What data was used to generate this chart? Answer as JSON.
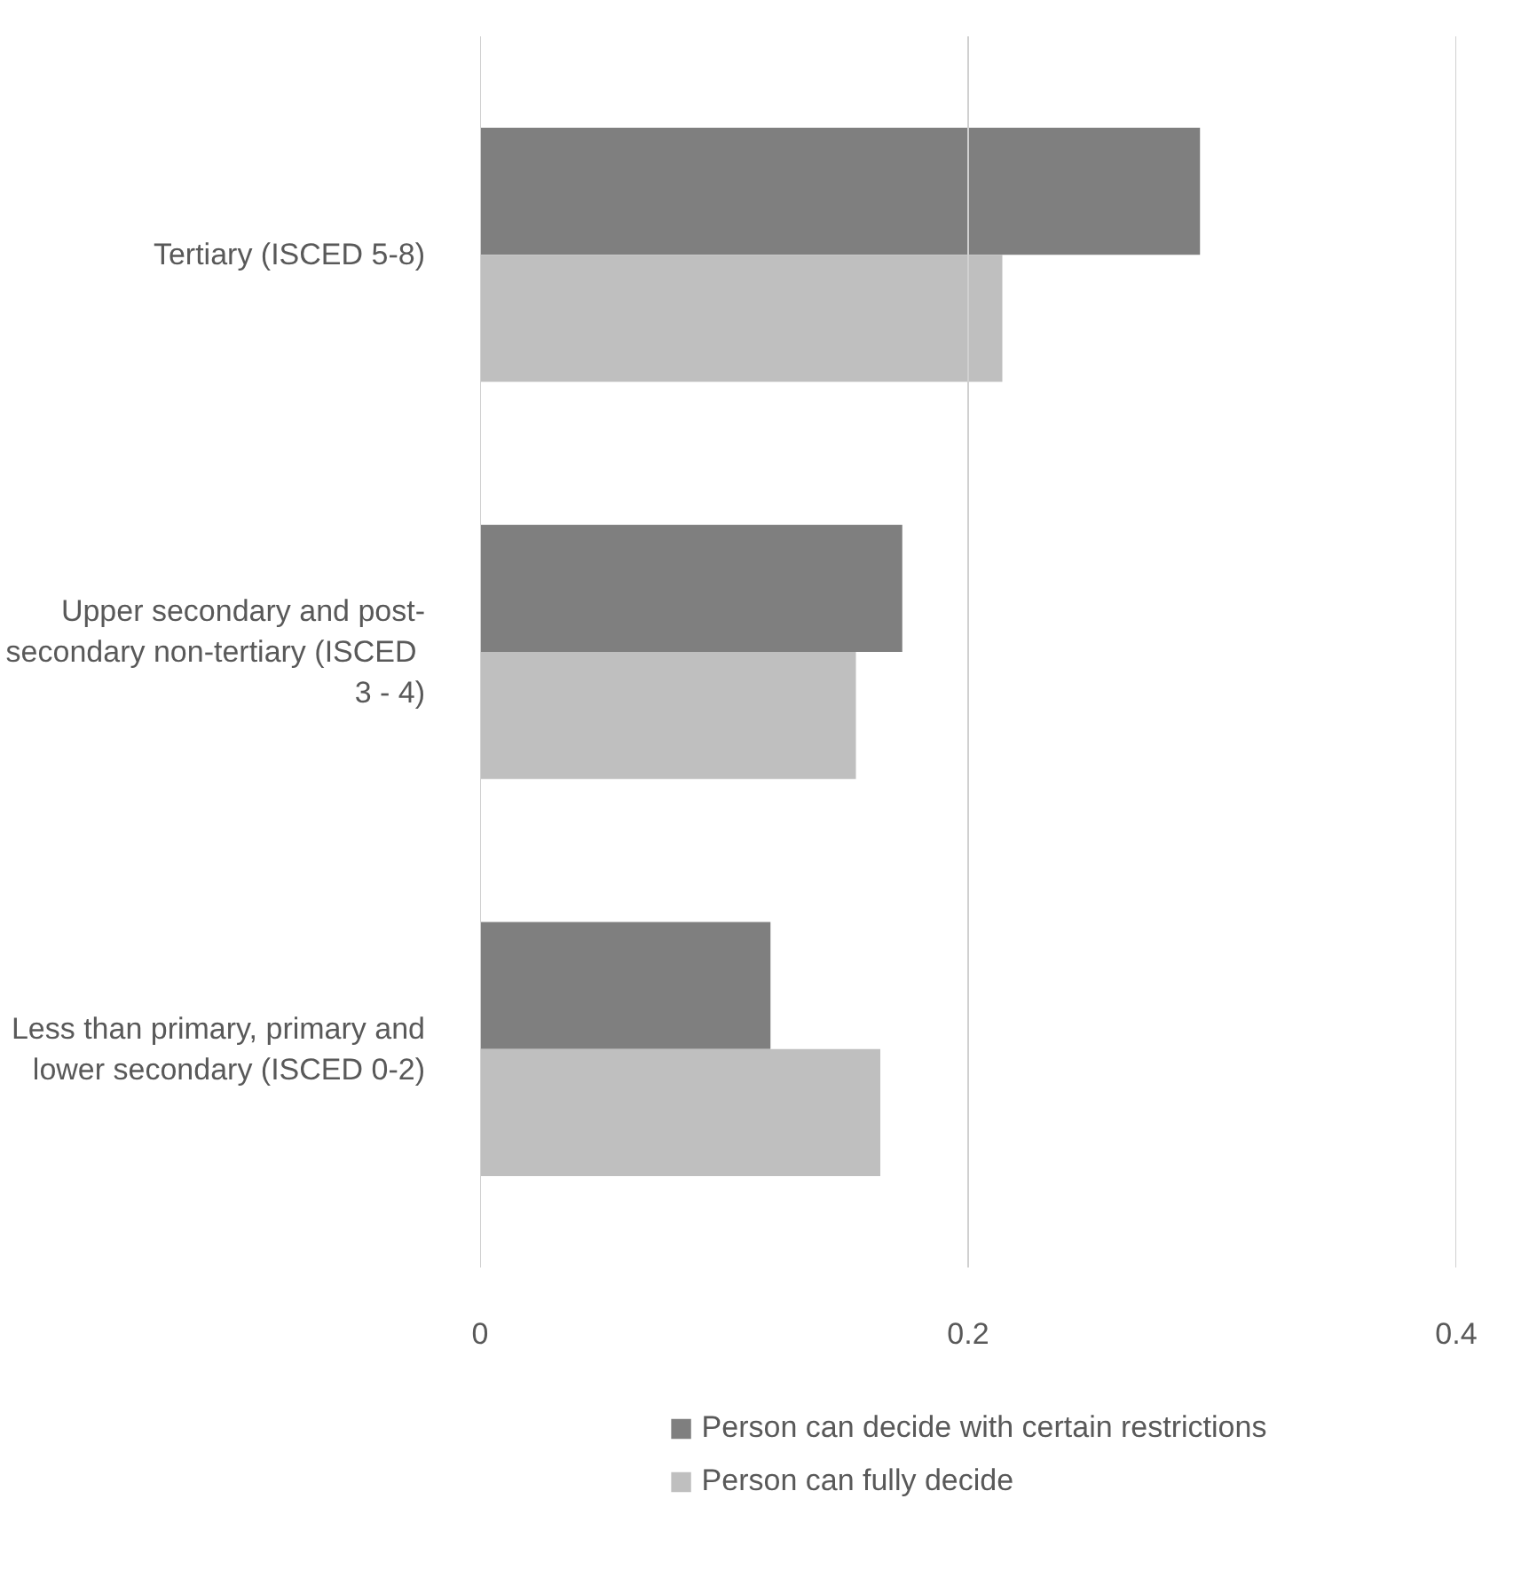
{
  "chart_data": {
    "type": "bar",
    "orientation": "horizontal",
    "categories": [
      "Tertiary (ISCED 5-8)",
      "Upper secondary and post-secondary non-tertiary  (ISCED 3 - 4)",
      "Less than primary, primary and lower secondary (ISCED 0-2)"
    ],
    "series": [
      {
        "name": "Person can decide with certain restrictions",
        "color": "#7f7f7f",
        "values": [
          0.295,
          0.173,
          0.119
        ]
      },
      {
        "name": "Person can fully decide",
        "color": "#bfbfbf",
        "values": [
          0.214,
          0.154,
          0.164
        ]
      }
    ],
    "xlim": [
      0,
      0.4
    ],
    "xticks": [
      0,
      0.2,
      0.4
    ],
    "grid": "x",
    "legend": "bottom"
  }
}
